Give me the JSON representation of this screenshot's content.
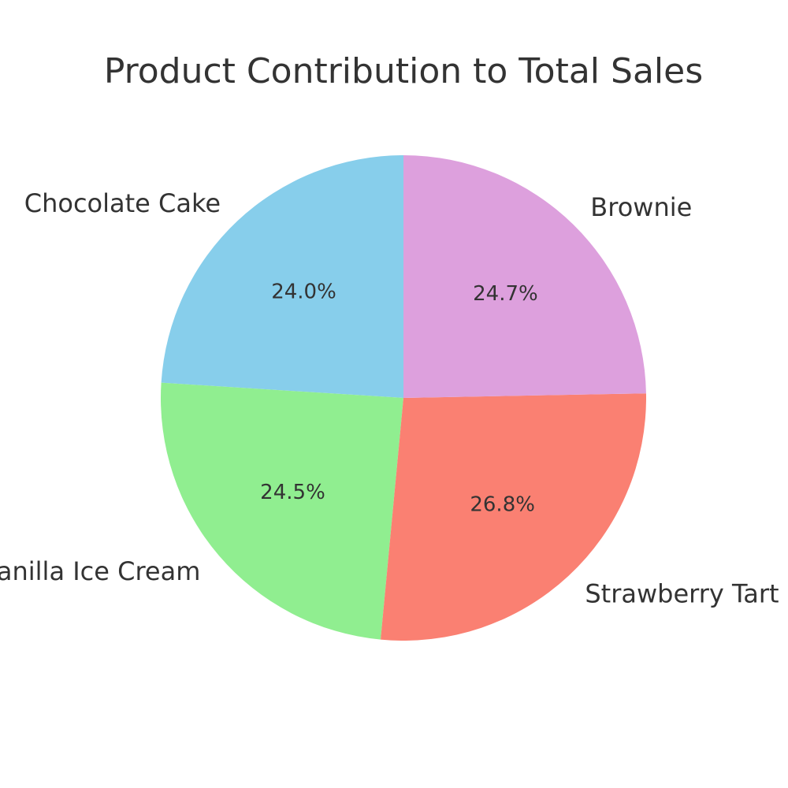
{
  "chart_data": {
    "type": "pie",
    "title": "Product Contribution to Total Sales",
    "start_angle_deg": 90,
    "direction": "counterclockwise",
    "slices": [
      {
        "label": "Chocolate Cake",
        "value": 24.0,
        "pct_label": "24.0%",
        "color": "#87CEEB"
      },
      {
        "label": "Vanilla Ice Cream",
        "value": 24.5,
        "pct_label": "24.5%",
        "color": "#90EE90"
      },
      {
        "label": "Strawberry Tart",
        "value": 26.8,
        "pct_label": "26.8%",
        "color": "#FA8072"
      },
      {
        "label": "Brownie",
        "value": 24.7,
        "pct_label": "24.7%",
        "color": "#DDA0DD"
      }
    ]
  }
}
